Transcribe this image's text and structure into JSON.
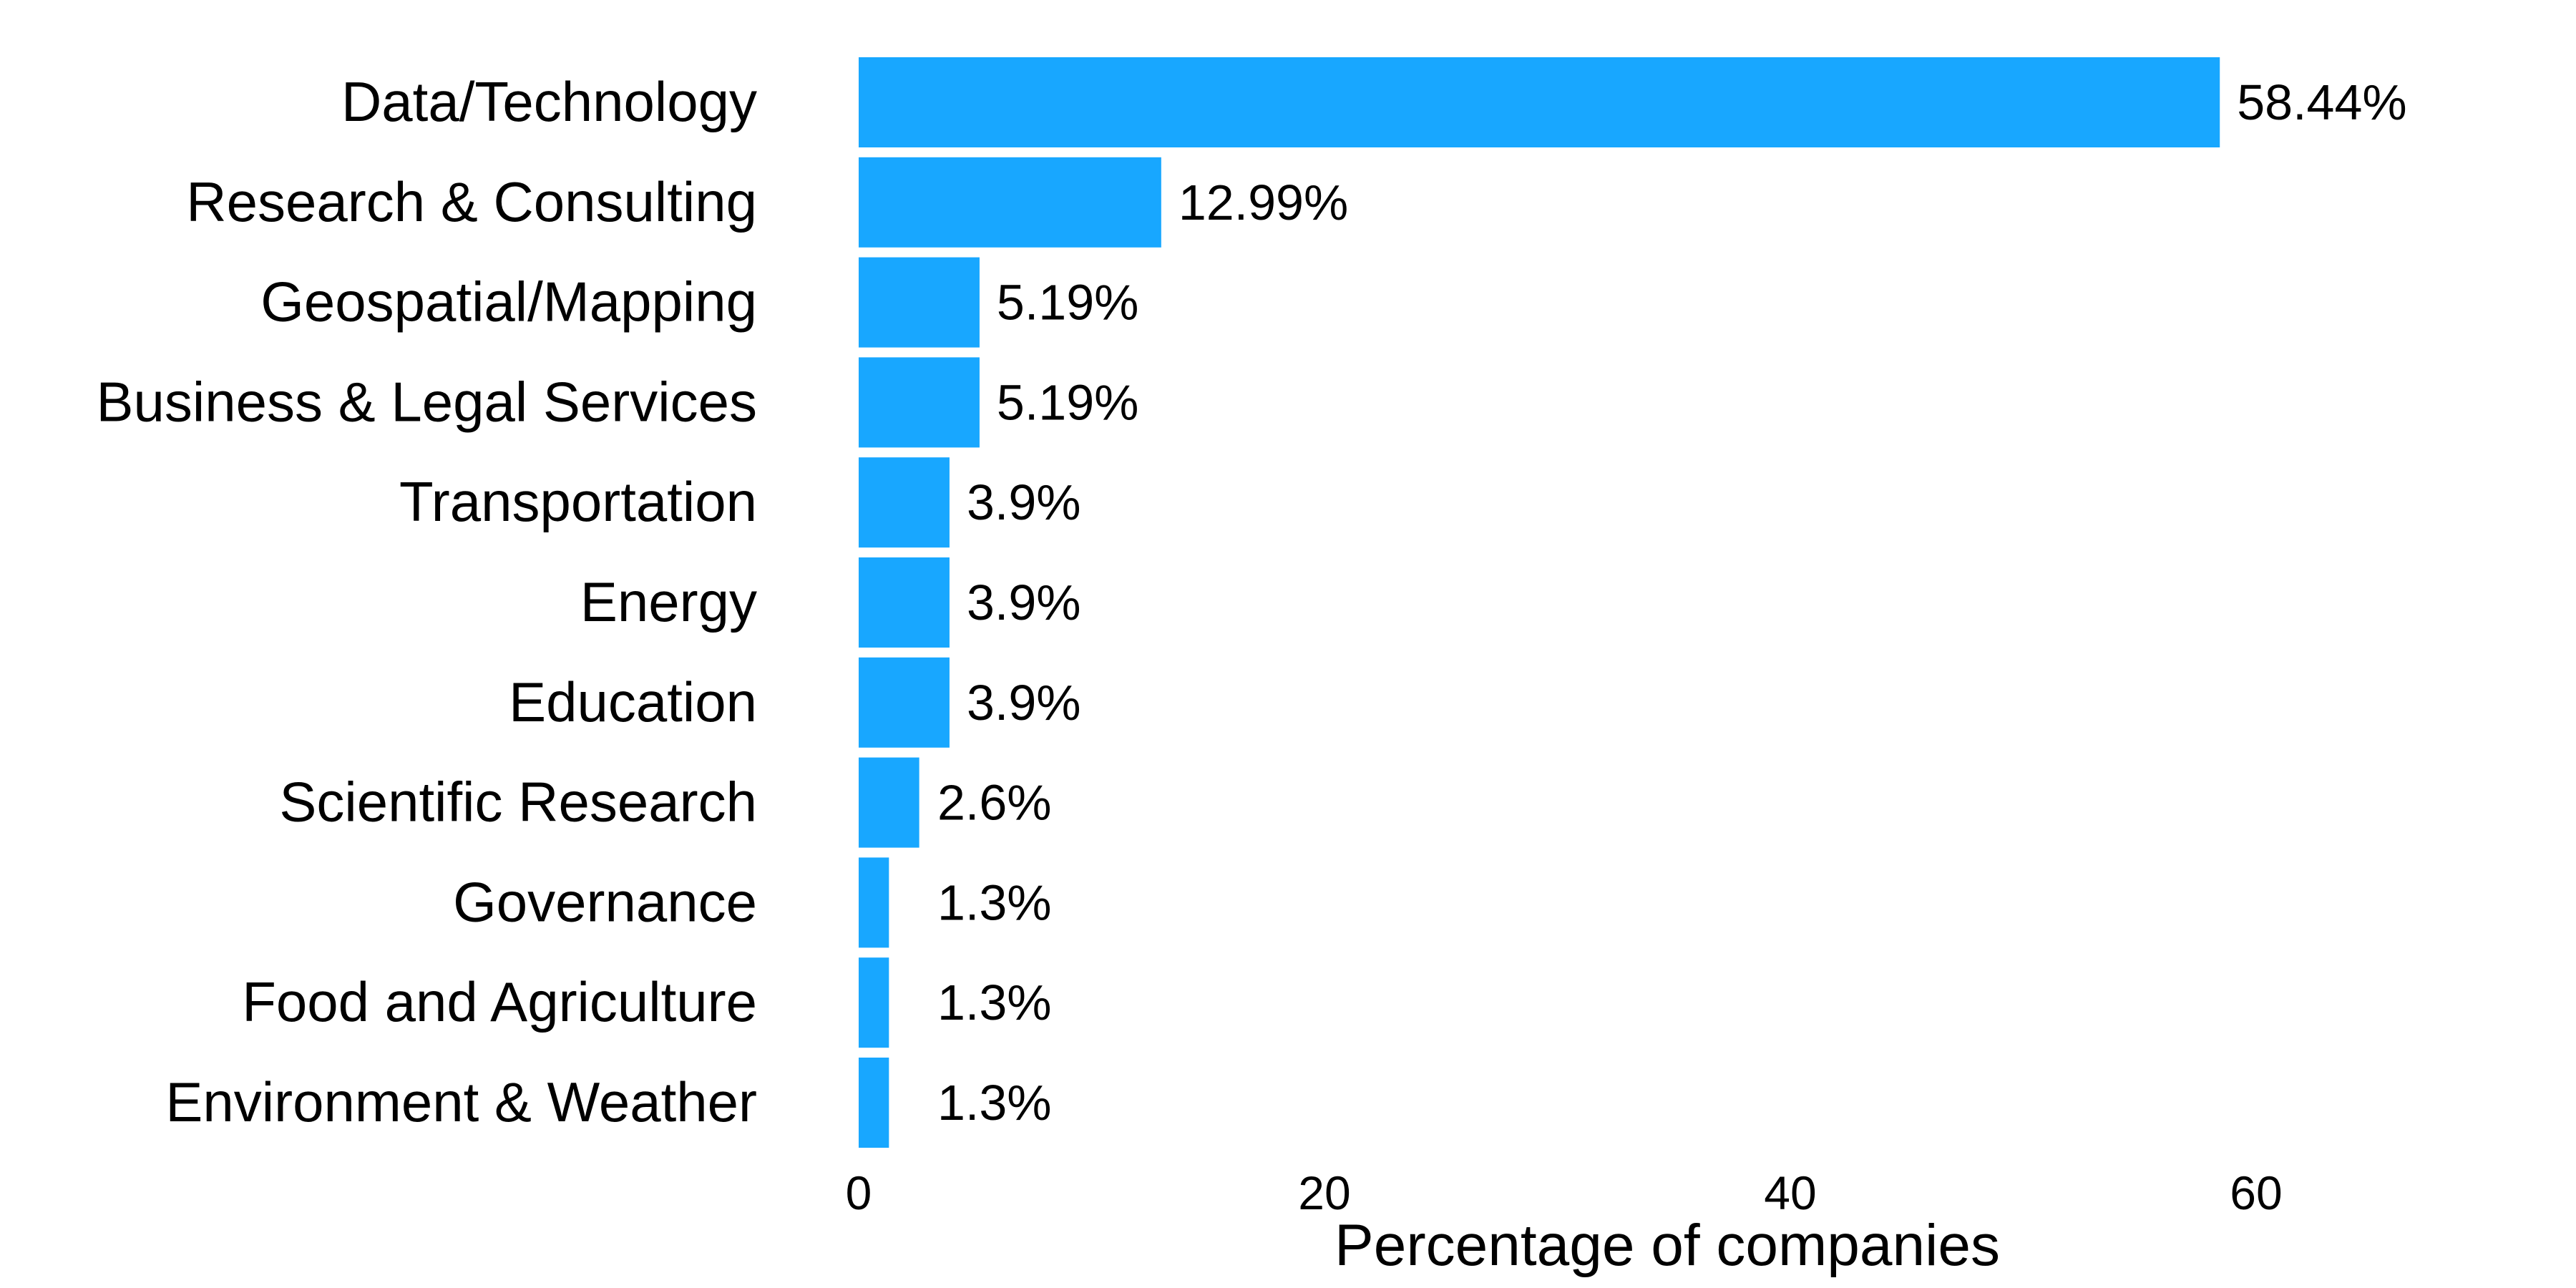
{
  "chart_data": {
    "type": "bar",
    "orientation": "horizontal",
    "categories": [
      "Data/Technology",
      "Research & Consulting",
      "Geospatial/Mapping",
      "Business & Legal Services",
      "Transportation",
      "Energy",
      "Education",
      "Scientific Research",
      "Governance",
      "Food and Agriculture",
      "Environment  & Weather"
    ],
    "values": [
      58.44,
      12.99,
      5.19,
      5.19,
      3.9,
      3.9,
      3.9,
      2.6,
      1.3,
      1.3,
      1.3
    ],
    "value_labels": [
      "58.44%",
      "12.99%",
      "5.19%",
      "5.19%",
      "3.9%",
      "3.9%",
      "3.9%",
      "2.6%",
      "1.3%",
      "1.3%",
      "1.3%"
    ],
    "xlabel": "Percentage of companies",
    "ylabel": "",
    "xlim": [
      0,
      70
    ],
    "xticks": [
      0,
      20,
      40,
      60
    ],
    "xtick_labels": [
      "0",
      "20",
      "40",
      "60"
    ],
    "grid": false,
    "legend": "none",
    "bar_color": "#18a7ff"
  }
}
